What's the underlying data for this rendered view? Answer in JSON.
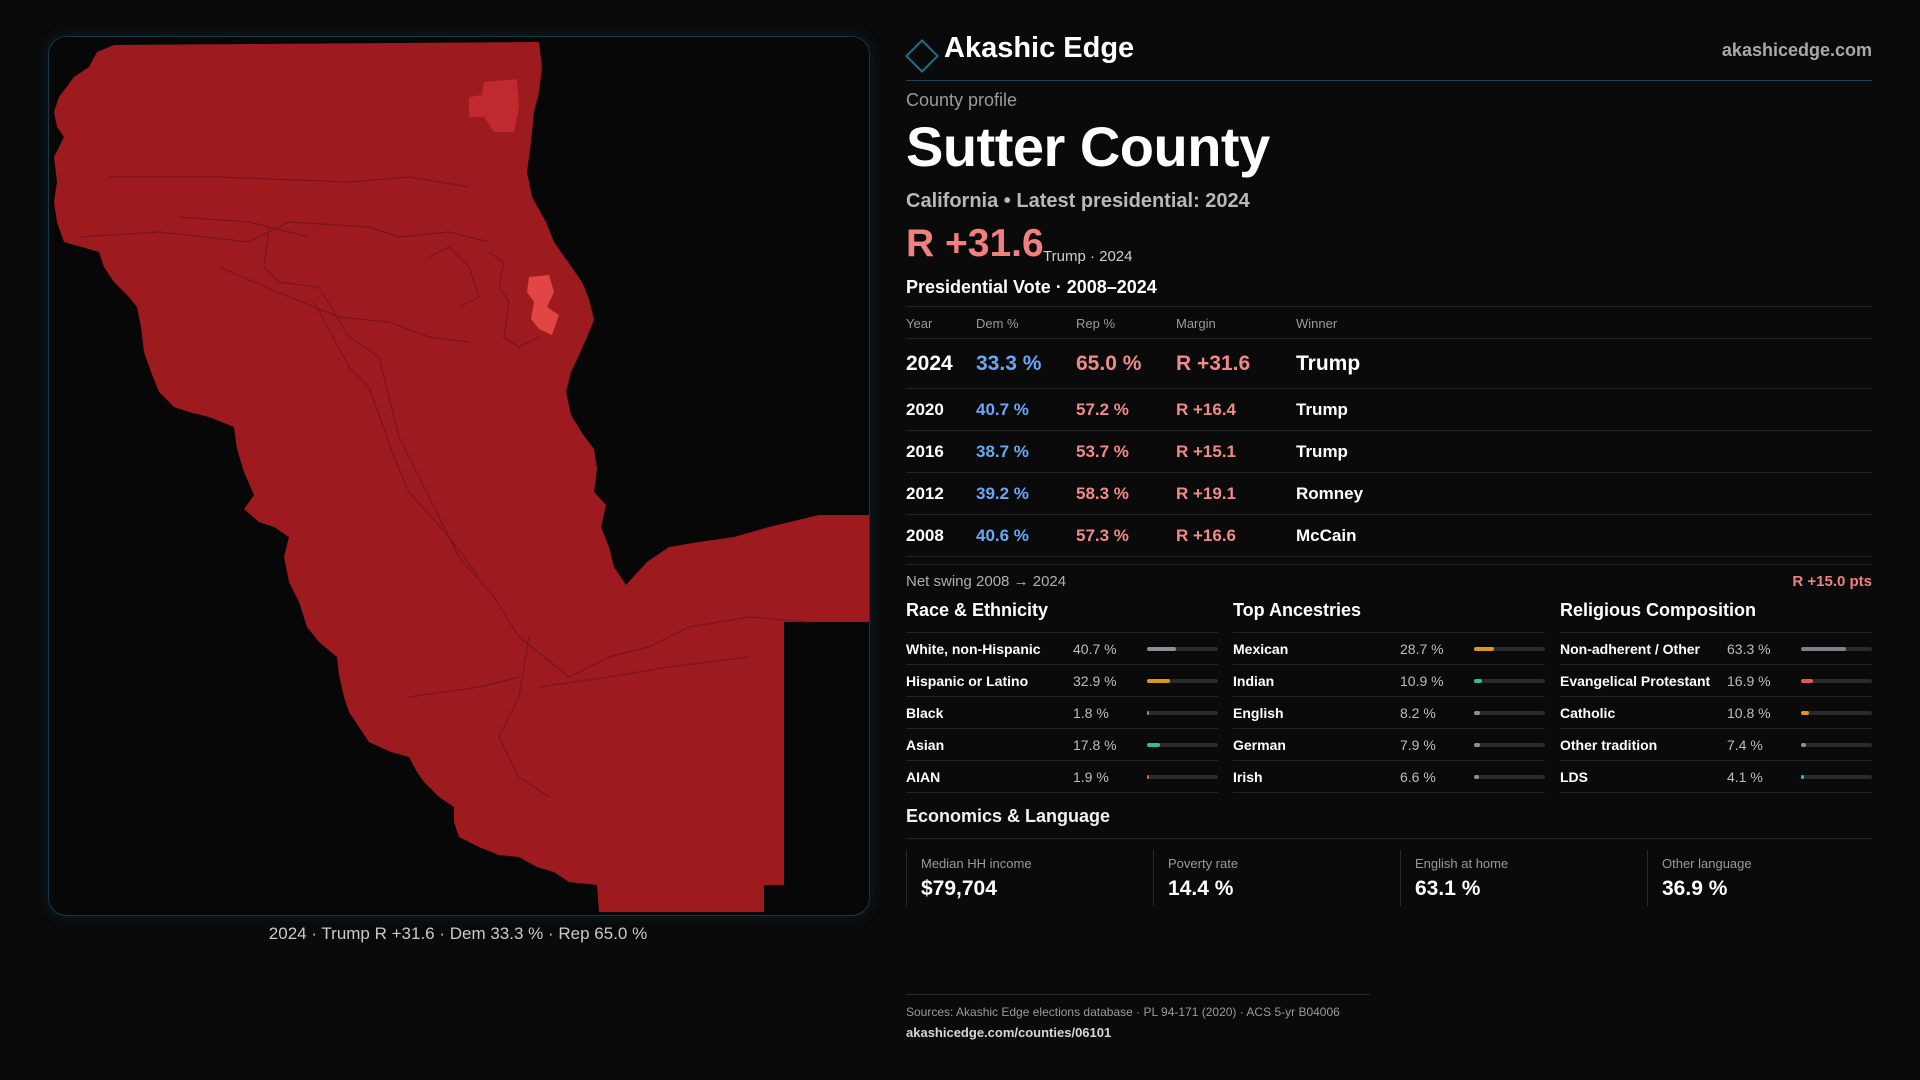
{
  "header": {
    "brand": "Akashic Edge",
    "site": "akashicedge.com"
  },
  "profile": {
    "kicker": "County profile",
    "title": "Sutter County",
    "subtitle": "California • Latest presidential: 2024",
    "margin": "R +31.6",
    "margin_sub": "Trump · 2024"
  },
  "map": {
    "caption": "2024 · Trump R +31.6 · Dem 33.3 % · Rep 65.0 %",
    "fill_color": "#9d1b1e",
    "highlight_color": "#e24545"
  },
  "vote": {
    "title": "Presidential Vote · 2008–2024",
    "headers": {
      "year": "Year",
      "dem": "Dem %",
      "rep": "Rep %",
      "margin": "Margin",
      "winner": "Winner"
    },
    "rows": [
      {
        "year": "2024",
        "dem": "33.3 %",
        "rep": "65.0 %",
        "margin": "R +31.6",
        "winner": "Trump"
      },
      {
        "year": "2020",
        "dem": "40.7 %",
        "rep": "57.2 %",
        "margin": "R +16.4",
        "winner": "Trump"
      },
      {
        "year": "2016",
        "dem": "38.7 %",
        "rep": "53.7 %",
        "margin": "R +15.1",
        "winner": "Trump"
      },
      {
        "year": "2012",
        "dem": "39.2 %",
        "rep": "58.3 %",
        "margin": "R +19.1",
        "winner": "Romney"
      },
      {
        "year": "2008",
        "dem": "40.6 %",
        "rep": "57.3 %",
        "margin": "R +16.6",
        "winner": "McCain"
      }
    ],
    "swing_label": "Net swing 2008 → 2024",
    "swing_value": "R +15.0 pts"
  },
  "race": {
    "title": "Race & Ethnicity",
    "rows": [
      {
        "name": "White, non-Hispanic",
        "value": "40.7 %",
        "pct": 40.7,
        "color": "#8a8f9a"
      },
      {
        "name": "Hispanic or Latino",
        "value": "32.9 %",
        "pct": 32.9,
        "color": "#d99a1c"
      },
      {
        "name": "Black",
        "value": "1.8 %",
        "pct": 1.8,
        "color": "#8a8f9a"
      },
      {
        "name": "Asian",
        "value": "17.8 %",
        "pct": 17.8,
        "color": "#2fbf8a"
      },
      {
        "name": "AIAN",
        "value": "1.9 %",
        "pct": 1.9,
        "color": "#d9663a"
      }
    ]
  },
  "ancestry": {
    "title": "Top Ancestries",
    "rows": [
      {
        "name": "Mexican",
        "value": "28.7 %",
        "pct": 28.7,
        "color": "#d99a1c"
      },
      {
        "name": "Indian",
        "value": "10.9 %",
        "pct": 10.9,
        "color": "#2fbf8a"
      },
      {
        "name": "English",
        "value": "8.2 %",
        "pct": 8.2,
        "color": "#8a8f9a"
      },
      {
        "name": "German",
        "value": "7.9 %",
        "pct": 7.9,
        "color": "#8a8f9a"
      },
      {
        "name": "Irish",
        "value": "6.6 %",
        "pct": 6.6,
        "color": "#8a8f9a"
      }
    ]
  },
  "religion": {
    "title": "Religious Composition",
    "rows": [
      {
        "name": "Non-adherent / Other",
        "value": "63.3 %",
        "pct": 63.3,
        "color": "#7d818c"
      },
      {
        "name": "Evangelical Protestant",
        "value": "16.9 %",
        "pct": 16.9,
        "color": "#e05a5a"
      },
      {
        "name": "Catholic",
        "value": "10.8 %",
        "pct": 10.8,
        "color": "#d99a1c"
      },
      {
        "name": "Other tradition",
        "value": "7.4 %",
        "pct": 7.4,
        "color": "#8a8f9a"
      },
      {
        "name": "LDS",
        "value": "4.1 %",
        "pct": 4.1,
        "color": "#2fb6c9"
      }
    ]
  },
  "economics": {
    "title": "Economics & Language",
    "items": [
      {
        "label": "Median HH income",
        "value": "$79,704"
      },
      {
        "label": "Poverty rate",
        "value": "14.4 %"
      },
      {
        "label": "English at home",
        "value": "63.1 %"
      },
      {
        "label": "Other language",
        "value": "36.9 %"
      }
    ]
  },
  "sources": {
    "line1": "Sources: Akashic Edge elections database · PL 94-171 (2020) · ACS 5-yr B04006",
    "line2": "akashicedge.com/counties/06101"
  }
}
